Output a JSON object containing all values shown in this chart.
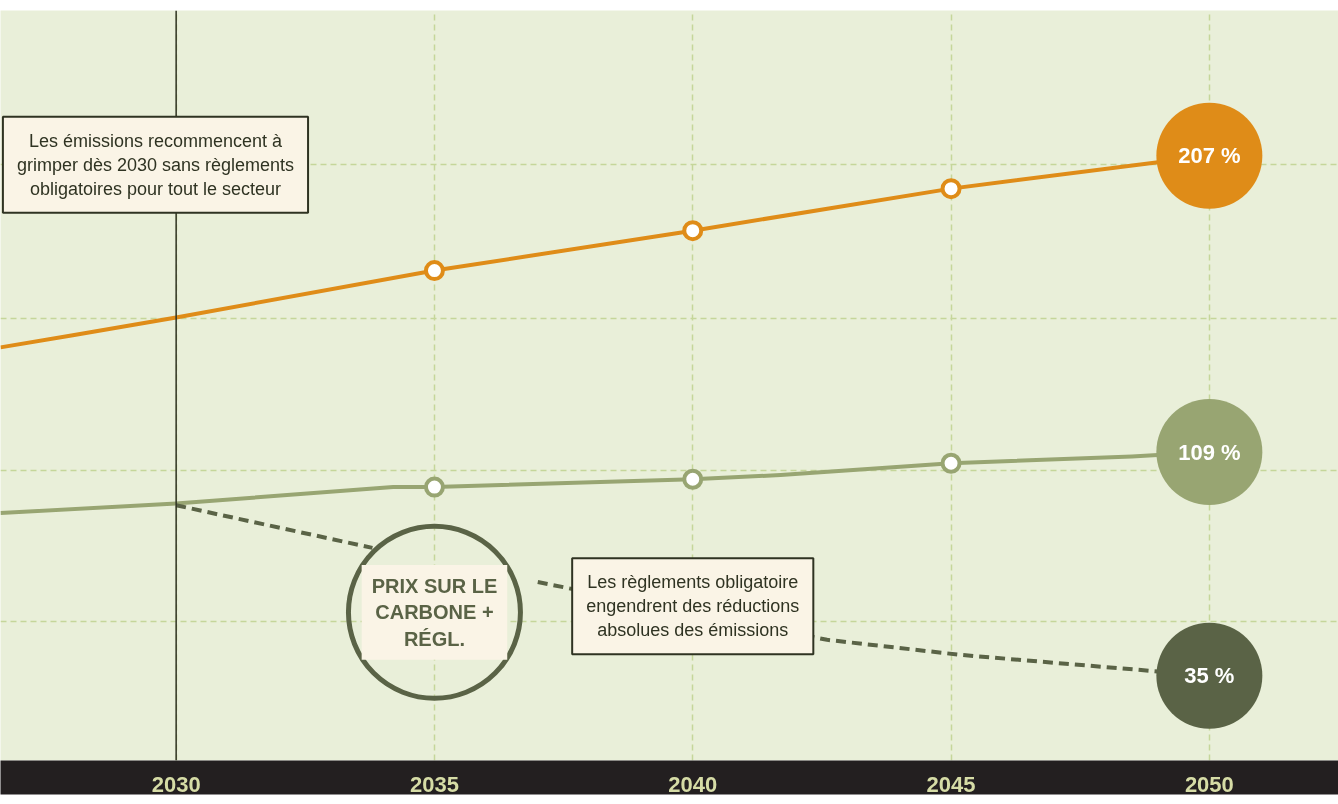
{
  "chart_data": {
    "type": "line",
    "x": [
      2026.6,
      2028,
      2030,
      2035,
      2040,
      2045,
      2050
    ],
    "xlim": [
      2026.6,
      2052.5
    ],
    "xticks": [
      2030,
      2035,
      2040,
      2045,
      2050
    ],
    "ylim": [
      7,
      255
    ],
    "yticks": [
      {
        "value": 53,
        "label": null
      },
      {
        "value": 103,
        "label": null
      },
      {
        "value": 153,
        "label": null
      },
      {
        "value": 204,
        "label": null
      }
    ],
    "grid": true,
    "line_style": "solid",
    "series": [
      {
        "color": "#df8c18",
        "values": [
          143.6,
          147.6,
          153.5,
          169,
          182.2,
          196.1,
          207
        ],
        "value_labels": [
          null,
          null,
          null,
          null,
          null,
          null,
          "207 %"
        ]
      },
      {
        "color": "#98a572",
        "x": [
          2026.6,
          2030,
          2034.2,
          2035,
          2040,
          2041.7,
          2045,
          2048.5,
          2050
        ],
        "values": [
          88.8,
          92,
          97.4,
          97.4,
          100,
          101.4,
          105.3,
          107.5,
          109
        ],
        "value_labels": [
          null,
          null,
          null,
          null,
          null,
          null,
          null,
          null,
          "109 %"
        ]
      },
      {
        "name": "PRIX SUR LE CARBONE + RÉGL.",
        "color": "#5a6346",
        "line_style": "dashed",
        "x": [
          2030,
          2033.8,
          2035,
          2037,
          2042.6,
          2045.2,
          2050
        ],
        "values": [
          91.4,
          77.3,
          null,
          66,
          46.9,
          41.9,
          35
        ],
        "value_labels": [
          null,
          null,
          null,
          null,
          null,
          null,
          "35 %"
        ]
      },
      {
        "type": "scatter",
        "marker": "circle",
        "color": "#df8c18",
        "x": [
          2035,
          2040,
          2045
        ],
        "values": [
          169,
          182.2,
          196.1
        ]
      },
      {
        "type": "scatter",
        "marker": "circle",
        "color": "#98a572",
        "x": [
          2035,
          2040,
          2045
        ],
        "values": [
          97.4,
          100,
          105.3
        ]
      }
    ],
    "ref_lines": [
      {
        "axis": "x",
        "value": 2030,
        "color": "#2f3322"
      }
    ],
    "annotations": [
      "Les émissions recommencent à grimper dès 2030 sans règlements obligatoires pour tout le secteur",
      "Les règlements obligatoire engendrent des réductions absolues des émissions"
    ]
  }
}
